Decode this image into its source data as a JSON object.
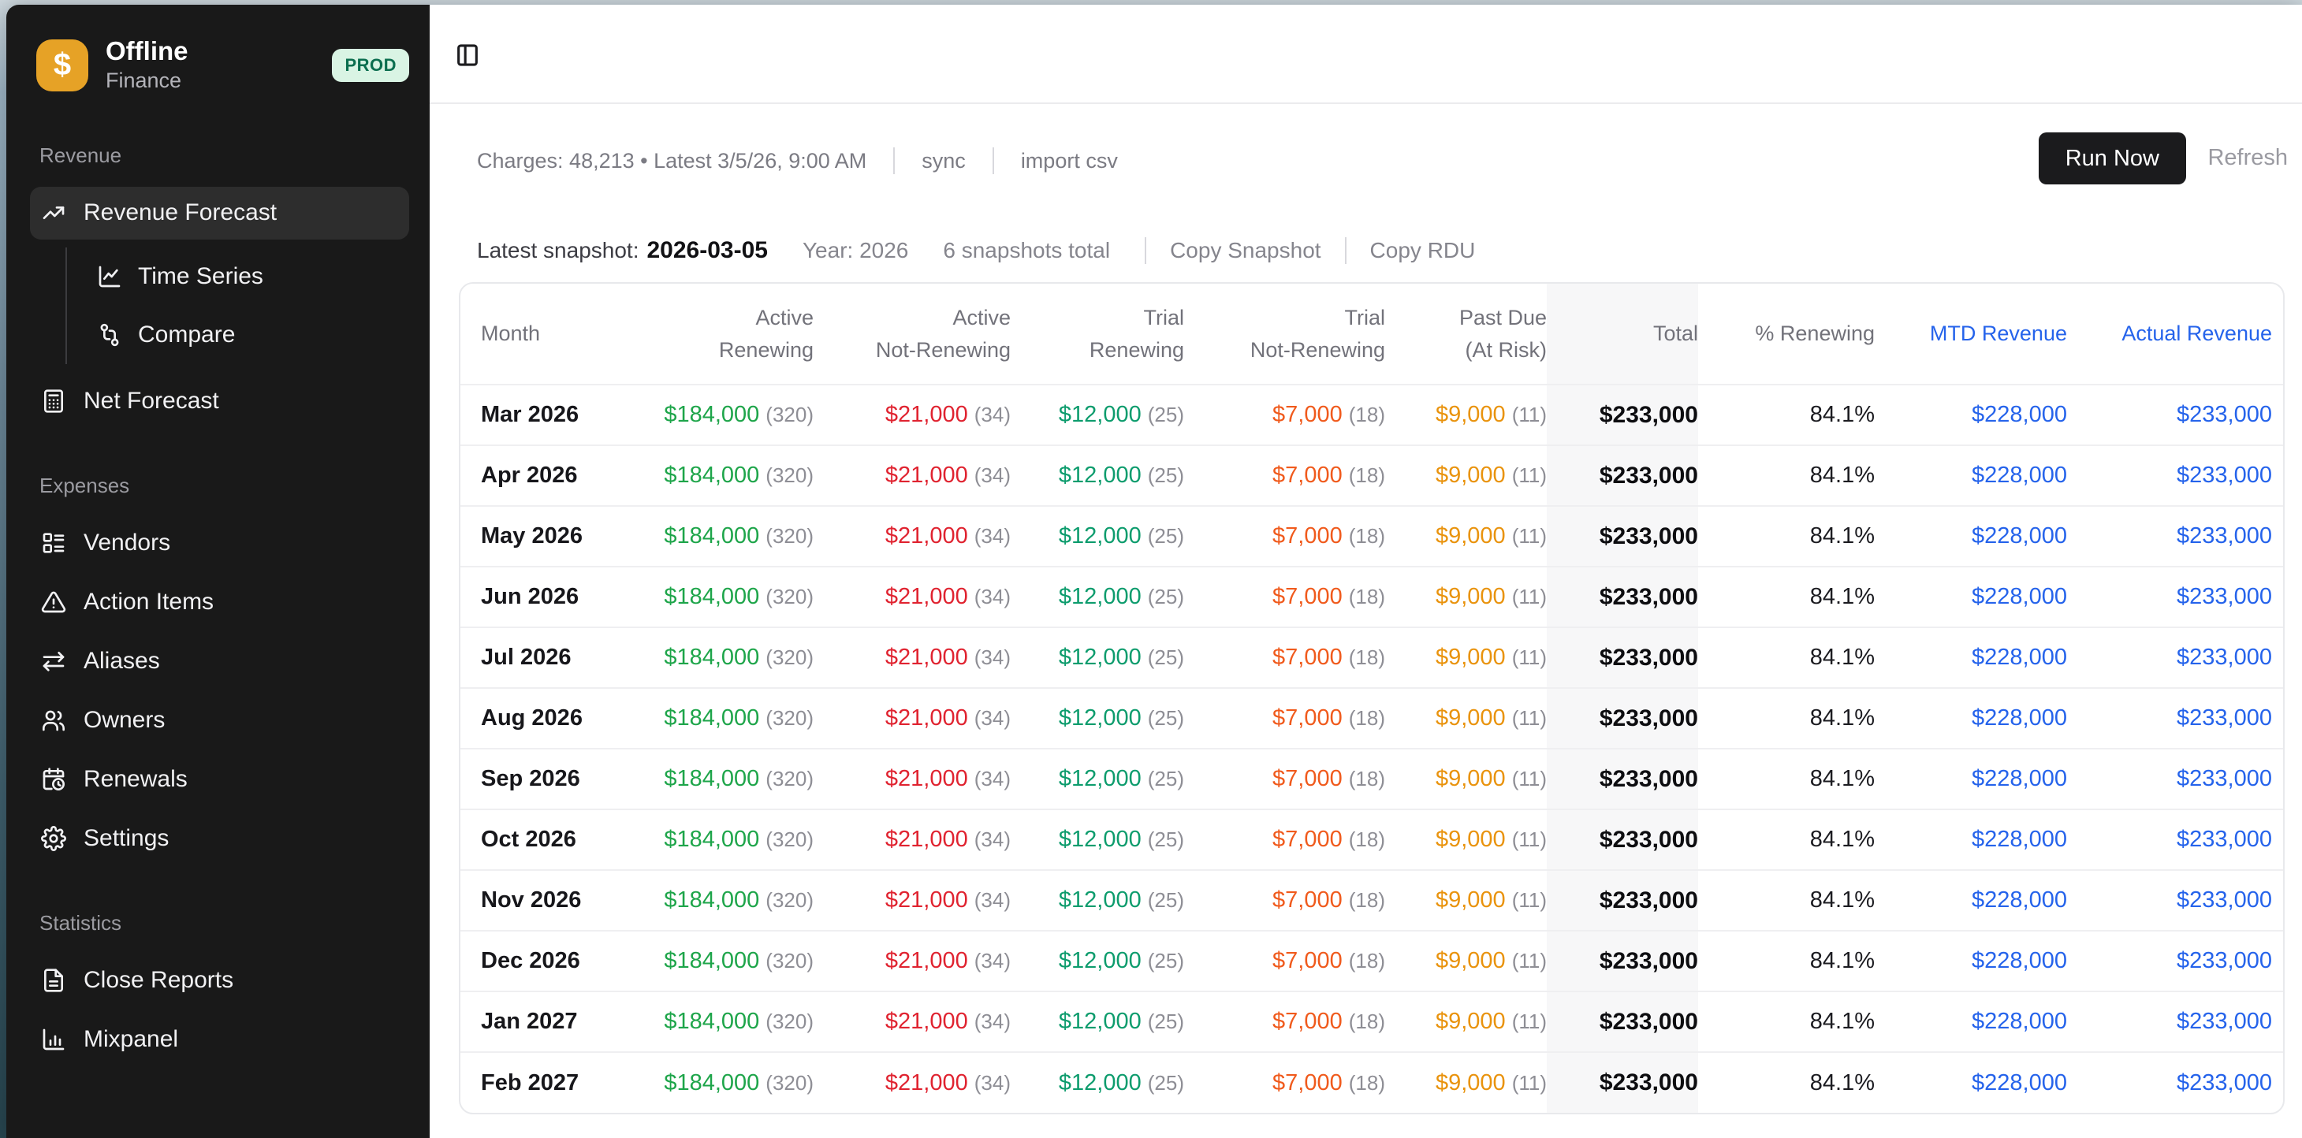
{
  "app": {
    "title": "Offline",
    "subtitle": "Finance",
    "env_badge": "PROD",
    "logo_glyph": "$"
  },
  "sidebar": {
    "sections": [
      {
        "label": "Revenue",
        "items": [
          {
            "label": "Revenue Forecast",
            "icon": "trending-up-icon",
            "active": true
          },
          {
            "label": "Time Series",
            "icon": "line-chart-icon",
            "child": true
          },
          {
            "label": "Compare",
            "icon": "git-compare-icon",
            "child": true
          },
          {
            "label": "Net Forecast",
            "icon": "calculator-icon"
          }
        ]
      },
      {
        "label": "Expenses",
        "items": [
          {
            "label": "Vendors",
            "icon": "layout-list-icon"
          },
          {
            "label": "Action Items",
            "icon": "alert-triangle-icon"
          },
          {
            "label": "Aliases",
            "icon": "arrows-left-right-icon"
          },
          {
            "label": "Owners",
            "icon": "users-icon"
          },
          {
            "label": "Renewals",
            "icon": "calendar-clock-icon"
          },
          {
            "label": "Settings",
            "icon": "gear-icon"
          }
        ]
      },
      {
        "label": "Statistics",
        "items": [
          {
            "label": "Close Reports",
            "icon": "file-text-icon"
          },
          {
            "label": "Mixpanel",
            "icon": "bar-chart-icon"
          }
        ]
      }
    ]
  },
  "toolbar": {
    "charges_text": "Charges: 48,213 • Latest 3/5/26, 9:00 AM",
    "sync_label": "sync",
    "import_label": "import csv",
    "run_now_label": "Run Now",
    "refresh_label": "Refresh"
  },
  "snapshot_bar": {
    "latest_label": "Latest snapshot:",
    "latest_value": "2026-03-05",
    "year_label": "Year: 2026",
    "count_label": "6 snapshots total",
    "copy_snapshot_label": "Copy Snapshot",
    "copy_rdu_label": "Copy RDU"
  },
  "colors": {
    "accent_orange": "#e6a226",
    "badge_green_bg": "#d9f4e4",
    "badge_green_text": "#0b6e4f",
    "positive_green": "#1ea54a",
    "negative_red": "#e02330",
    "trial_teal": "#0d9c6d",
    "trial_orange": "#f05a1c",
    "past_due_amber": "#e9930d",
    "link_blue": "#2563eb"
  },
  "table": {
    "columns": [
      {
        "key": "month",
        "label": "Month",
        "type": "text",
        "align": "left"
      },
      {
        "key": "active_renewing",
        "label": "Active\nRenewing",
        "type": "money_count",
        "color": "green"
      },
      {
        "key": "active_not_renewing",
        "label": "Active\nNot-Renewing",
        "type": "money_count",
        "color": "red"
      },
      {
        "key": "trial_renewing",
        "label": "Trial\nRenewing",
        "type": "money_count",
        "color": "teal"
      },
      {
        "key": "trial_not_renewing",
        "label": "Trial\nNot-Renewing",
        "type": "money_count",
        "color": "orange"
      },
      {
        "key": "past_due",
        "label": "Past Due\n(At Risk)",
        "type": "money_count",
        "color": "amber"
      },
      {
        "key": "total",
        "label": "Total",
        "type": "total",
        "band": true
      },
      {
        "key": "pct_renewing",
        "label": "% Renewing",
        "type": "text_right"
      },
      {
        "key": "mtd_revenue",
        "label": "MTD Revenue",
        "type": "link_money",
        "color": "blue",
        "header_blue": true
      },
      {
        "key": "actual_revenue",
        "label": "Actual Revenue",
        "type": "link_money",
        "color": "blue",
        "header_blue": true,
        "last": true
      }
    ],
    "rows": [
      {
        "month": "Mar 2026",
        "active_renewing": {
          "amount": "$184,000",
          "count": "(320)"
        },
        "active_not_renewing": {
          "amount": "$21,000",
          "count": "(34)"
        },
        "trial_renewing": {
          "amount": "$12,000",
          "count": "(25)"
        },
        "trial_not_renewing": {
          "amount": "$7,000",
          "count": "(18)"
        },
        "past_due": {
          "amount": "$9,000",
          "count": "(11)"
        },
        "total": "$233,000",
        "pct_renewing": "84.1%",
        "mtd_revenue": "$228,000",
        "actual_revenue": "$233,000"
      },
      {
        "month": "Apr 2026",
        "active_renewing": {
          "amount": "$184,000",
          "count": "(320)"
        },
        "active_not_renewing": {
          "amount": "$21,000",
          "count": "(34)"
        },
        "trial_renewing": {
          "amount": "$12,000",
          "count": "(25)"
        },
        "trial_not_renewing": {
          "amount": "$7,000",
          "count": "(18)"
        },
        "past_due": {
          "amount": "$9,000",
          "count": "(11)"
        },
        "total": "$233,000",
        "pct_renewing": "84.1%",
        "mtd_revenue": "$228,000",
        "actual_revenue": "$233,000"
      },
      {
        "month": "May 2026",
        "active_renewing": {
          "amount": "$184,000",
          "count": "(320)"
        },
        "active_not_renewing": {
          "amount": "$21,000",
          "count": "(34)"
        },
        "trial_renewing": {
          "amount": "$12,000",
          "count": "(25)"
        },
        "trial_not_renewing": {
          "amount": "$7,000",
          "count": "(18)"
        },
        "past_due": {
          "amount": "$9,000",
          "count": "(11)"
        },
        "total": "$233,000",
        "pct_renewing": "84.1%",
        "mtd_revenue": "$228,000",
        "actual_revenue": "$233,000"
      },
      {
        "month": "Jun 2026",
        "active_renewing": {
          "amount": "$184,000",
          "count": "(320)"
        },
        "active_not_renewing": {
          "amount": "$21,000",
          "count": "(34)"
        },
        "trial_renewing": {
          "amount": "$12,000",
          "count": "(25)"
        },
        "trial_not_renewing": {
          "amount": "$7,000",
          "count": "(18)"
        },
        "past_due": {
          "amount": "$9,000",
          "count": "(11)"
        },
        "total": "$233,000",
        "pct_renewing": "84.1%",
        "mtd_revenue": "$228,000",
        "actual_revenue": "$233,000"
      },
      {
        "month": "Jul 2026",
        "active_renewing": {
          "amount": "$184,000",
          "count": "(320)"
        },
        "active_not_renewing": {
          "amount": "$21,000",
          "count": "(34)"
        },
        "trial_renewing": {
          "amount": "$12,000",
          "count": "(25)"
        },
        "trial_not_renewing": {
          "amount": "$7,000",
          "count": "(18)"
        },
        "past_due": {
          "amount": "$9,000",
          "count": "(11)"
        },
        "total": "$233,000",
        "pct_renewing": "84.1%",
        "mtd_revenue": "$228,000",
        "actual_revenue": "$233,000"
      },
      {
        "month": "Aug 2026",
        "active_renewing": {
          "amount": "$184,000",
          "count": "(320)"
        },
        "active_not_renewing": {
          "amount": "$21,000",
          "count": "(34)"
        },
        "trial_renewing": {
          "amount": "$12,000",
          "count": "(25)"
        },
        "trial_not_renewing": {
          "amount": "$7,000",
          "count": "(18)"
        },
        "past_due": {
          "amount": "$9,000",
          "count": "(11)"
        },
        "total": "$233,000",
        "pct_renewing": "84.1%",
        "mtd_revenue": "$228,000",
        "actual_revenue": "$233,000"
      },
      {
        "month": "Sep 2026",
        "active_renewing": {
          "amount": "$184,000",
          "count": "(320)"
        },
        "active_not_renewing": {
          "amount": "$21,000",
          "count": "(34)"
        },
        "trial_renewing": {
          "amount": "$12,000",
          "count": "(25)"
        },
        "trial_not_renewing": {
          "amount": "$7,000",
          "count": "(18)"
        },
        "past_due": {
          "amount": "$9,000",
          "count": "(11)"
        },
        "total": "$233,000",
        "pct_renewing": "84.1%",
        "mtd_revenue": "$228,000",
        "actual_revenue": "$233,000"
      },
      {
        "month": "Oct 2026",
        "active_renewing": {
          "amount": "$184,000",
          "count": "(320)"
        },
        "active_not_renewing": {
          "amount": "$21,000",
          "count": "(34)"
        },
        "trial_renewing": {
          "amount": "$12,000",
          "count": "(25)"
        },
        "trial_not_renewing": {
          "amount": "$7,000",
          "count": "(18)"
        },
        "past_due": {
          "amount": "$9,000",
          "count": "(11)"
        },
        "total": "$233,000",
        "pct_renewing": "84.1%",
        "mtd_revenue": "$228,000",
        "actual_revenue": "$233,000"
      },
      {
        "month": "Nov 2026",
        "active_renewing": {
          "amount": "$184,000",
          "count": "(320)"
        },
        "active_not_renewing": {
          "amount": "$21,000",
          "count": "(34)"
        },
        "trial_renewing": {
          "amount": "$12,000",
          "count": "(25)"
        },
        "trial_not_renewing": {
          "amount": "$7,000",
          "count": "(18)"
        },
        "past_due": {
          "amount": "$9,000",
          "count": "(11)"
        },
        "total": "$233,000",
        "pct_renewing": "84.1%",
        "mtd_revenue": "$228,000",
        "actual_revenue": "$233,000"
      },
      {
        "month": "Dec 2026",
        "active_renewing": {
          "amount": "$184,000",
          "count": "(320)"
        },
        "active_not_renewing": {
          "amount": "$21,000",
          "count": "(34)"
        },
        "trial_renewing": {
          "amount": "$12,000",
          "count": "(25)"
        },
        "trial_not_renewing": {
          "amount": "$7,000",
          "count": "(18)"
        },
        "past_due": {
          "amount": "$9,000",
          "count": "(11)"
        },
        "total": "$233,000",
        "pct_renewing": "84.1%",
        "mtd_revenue": "$228,000",
        "actual_revenue": "$233,000"
      },
      {
        "month": "Jan 2027",
        "active_renewing": {
          "amount": "$184,000",
          "count": "(320)"
        },
        "active_not_renewing": {
          "amount": "$21,000",
          "count": "(34)"
        },
        "trial_renewing": {
          "amount": "$12,000",
          "count": "(25)"
        },
        "trial_not_renewing": {
          "amount": "$7,000",
          "count": "(18)"
        },
        "past_due": {
          "amount": "$9,000",
          "count": "(11)"
        },
        "total": "$233,000",
        "pct_renewing": "84.1%",
        "mtd_revenue": "$228,000",
        "actual_revenue": "$233,000"
      },
      {
        "month": "Feb 2027",
        "active_renewing": {
          "amount": "$184,000",
          "count": "(320)"
        },
        "active_not_renewing": {
          "amount": "$21,000",
          "count": "(34)"
        },
        "trial_renewing": {
          "amount": "$12,000",
          "count": "(25)"
        },
        "trial_not_renewing": {
          "amount": "$7,000",
          "count": "(18)"
        },
        "past_due": {
          "amount": "$9,000",
          "count": "(11)"
        },
        "total": "$233,000",
        "pct_renewing": "84.1%",
        "mtd_revenue": "$228,000",
        "actual_revenue": "$233,000"
      }
    ]
  }
}
